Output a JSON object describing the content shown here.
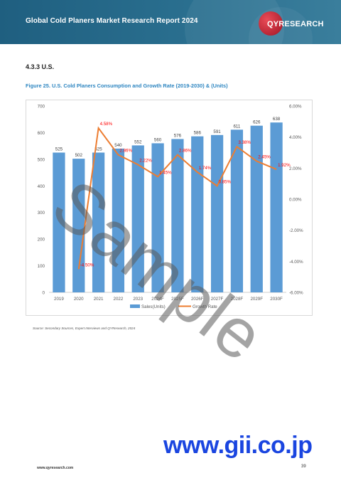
{
  "header": {
    "title": "Global Cold Planers Market Research Report 2024",
    "logo_text": "QYRESEARCH"
  },
  "section": {
    "heading": "4.3.3   U.S."
  },
  "figure": {
    "title": "Figure 25.    U.S. Cold Planers Consumption and Growth Rate (2019-2030) & (Units)"
  },
  "chart_data": {
    "type": "bar",
    "categories": [
      "2019",
      "2020",
      "2021",
      "2022",
      "2023",
      "2024F",
      "2025F",
      "2026F",
      "2027F",
      "2028F",
      "2029F",
      "2030F"
    ],
    "series": [
      {
        "name": "Sales(Units)",
        "type": "bar",
        "values": [
          525,
          502,
          525,
          540,
          552,
          560,
          576,
          586,
          591,
          611,
          626,
          638
        ],
        "labels": [
          "525",
          "502",
          "525",
          "540",
          "552",
          "560",
          "576",
          "586",
          "591",
          "611",
          "626",
          "638"
        ]
      },
      {
        "name": "Growth Rate",
        "type": "line",
        "axis": "right",
        "values": [
          null,
          -4.5,
          4.58,
          2.86,
          2.22,
          1.45,
          2.86,
          1.74,
          0.85,
          3.38,
          2.45,
          1.92
        ],
        "labels": [
          "",
          "-4.50%",
          "4.58%",
          "2.86%",
          "2.22%",
          "1.45%",
          "2.86%",
          "1.74%",
          "0.85%",
          "3.38%",
          "2.45%",
          "1.92%"
        ]
      }
    ],
    "y_left": {
      "min": 0,
      "max": 700,
      "ticks": [
        "0",
        "100",
        "200",
        "300",
        "400",
        "500",
        "600",
        "700"
      ]
    },
    "y_right": {
      "min": -6,
      "max": 6,
      "ticks": [
        "-6.00%",
        "-4.00%",
        "-2.00%",
        "0.00%",
        "2.00%",
        "4.00%",
        "6.00%"
      ]
    },
    "legend_position": "bottom",
    "grid": false,
    "colors": {
      "bar": "#5b9bd5",
      "line": "#ed7d31",
      "label": "#ff0000"
    }
  },
  "source": "Source: Secondary Sources, Expert Interviews and QYResearch, 2024",
  "footer": {
    "url": "www.qyresearch.com",
    "page": "39"
  },
  "watermark": "Sample",
  "overlay": "www.gii.co.jp"
}
